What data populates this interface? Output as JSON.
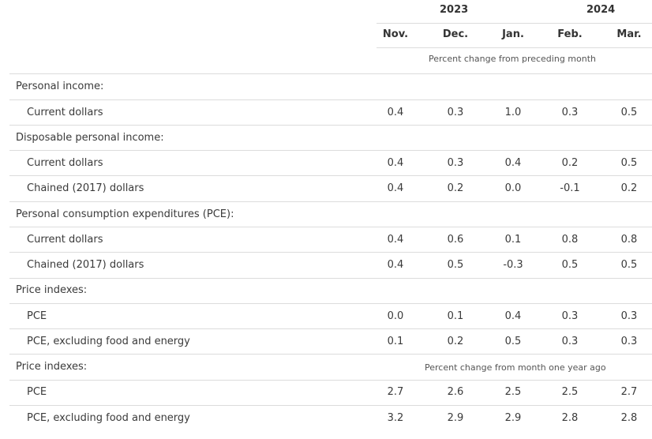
{
  "header": {
    "years": [
      "2023",
      "2024"
    ],
    "months": [
      "Nov.",
      "Dec.",
      "Jan.",
      "Feb.",
      "Mar."
    ],
    "subheader_monthly": "Percent change from preceding month",
    "subheader_annual": "Percent change from month one year ago"
  },
  "rows": [
    {
      "label": "Personal income:",
      "values": []
    },
    {
      "label": "Current dollars",
      "values": [
        "0.4",
        "0.3",
        "1.0",
        "0.3",
        "0.5"
      ]
    },
    {
      "label": "Disposable personal income:",
      "values": []
    },
    {
      "label": "Current dollars",
      "values": [
        "0.4",
        "0.3",
        "0.4",
        "0.2",
        "0.5"
      ]
    },
    {
      "label": "Chained (2017) dollars",
      "values": [
        "0.4",
        "0.2",
        "0.0",
        "-0.1",
        "0.2"
      ]
    },
    {
      "label": "Personal consumption expenditures (PCE):",
      "values": []
    },
    {
      "label": "Current dollars",
      "values": [
        "0.4",
        "0.6",
        "0.1",
        "0.8",
        "0.8"
      ]
    },
    {
      "label": "Chained (2017) dollars",
      "values": [
        "0.4",
        "0.5",
        "-0.3",
        "0.5",
        "0.5"
      ]
    },
    {
      "label": "Price indexes:",
      "values": []
    },
    {
      "label": "PCE",
      "values": [
        "0.0",
        "0.1",
        "0.4",
        "0.3",
        "0.3"
      ]
    },
    {
      "label": "PCE, excluding food and energy",
      "values": [
        "0.1",
        "0.2",
        "0.5",
        "0.3",
        "0.3"
      ]
    },
    {
      "label": "Price indexes:",
      "values": []
    },
    {
      "label": "PCE",
      "values": [
        "2.7",
        "2.6",
        "2.5",
        "2.5",
        "2.7"
      ]
    },
    {
      "label": "PCE, excluding food and energy",
      "values": [
        "3.2",
        "2.9",
        "2.9",
        "2.8",
        "2.8"
      ]
    }
  ]
}
